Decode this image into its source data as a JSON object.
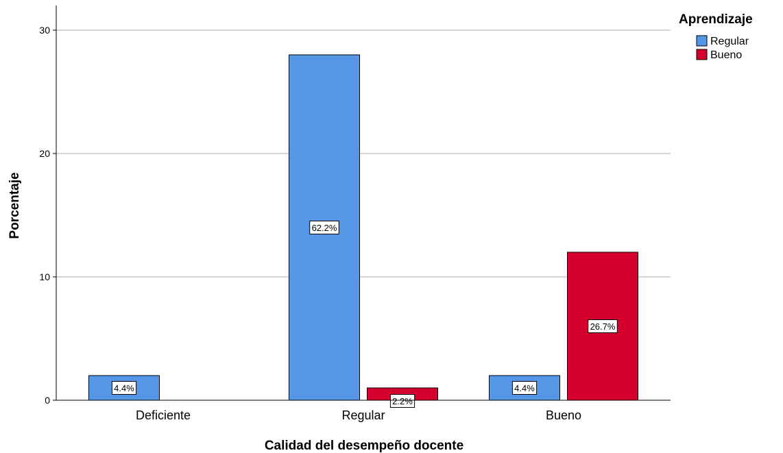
{
  "chart_data": {
    "type": "bar",
    "categories": [
      "Deficiente",
      "Regular",
      "Bueno"
    ],
    "xlabel": "Calidad del desempeño docente",
    "ylabel": "Porcentaje",
    "ylim": [
      0,
      32
    ],
    "yticks": [
      0,
      10,
      20,
      30
    ],
    "grid": true,
    "legend": {
      "title": "Aprendizaje",
      "placement": "top-right"
    },
    "series": [
      {
        "name": "Regular",
        "color": "#5596e6",
        "values": [
          2,
          28,
          2
        ],
        "labels": [
          "4.4%",
          "62.2%",
          "4.4%"
        ]
      },
      {
        "name": "Bueno",
        "color": "#d6002e",
        "values": [
          null,
          1,
          12
        ],
        "labels": [
          null,
          "2.2%",
          "26.7%"
        ]
      }
    ]
  }
}
